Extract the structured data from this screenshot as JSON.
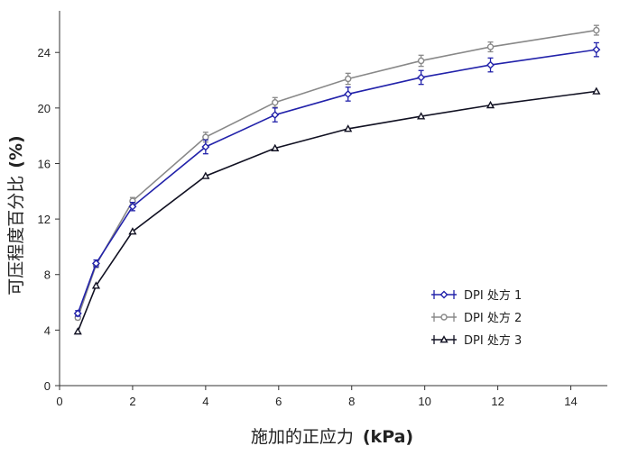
{
  "chart_data": {
    "type": "line",
    "xlabel": {
      "text": "施加的正应力",
      "unit": "(kPa)"
    },
    "ylabel": {
      "text": "可压程度百分比",
      "unit": "(%)"
    },
    "xlim": [
      0,
      15
    ],
    "ylim": [
      0,
      27
    ],
    "x_ticks": [
      0,
      2,
      4,
      6,
      8,
      10,
      12,
      14
    ],
    "y_ticks": [
      0,
      4,
      8,
      12,
      16,
      20,
      24
    ],
    "grid": false,
    "legend_position": "lower-right",
    "series": [
      {
        "name": "DPI 处方 1",
        "color": "#2222aa",
        "marker": "diamond",
        "x": [
          0.5,
          1.0,
          2.0,
          4.0,
          5.9,
          7.9,
          9.9,
          11.8,
          14.7
        ],
        "y": [
          5.2,
          8.8,
          12.9,
          17.2,
          19.5,
          21.0,
          22.2,
          23.1,
          24.2
        ],
        "err": [
          0.2,
          0.25,
          0.3,
          0.5,
          0.5,
          0.5,
          0.5,
          0.5,
          0.5
        ]
      },
      {
        "name": "DPI 处方 2",
        "color": "#888888",
        "marker": "circle",
        "x": [
          0.5,
          1.0,
          2.0,
          4.0,
          5.9,
          7.9,
          9.9,
          11.8,
          14.7
        ],
        "y": [
          4.9,
          8.7,
          13.3,
          17.9,
          20.4,
          22.1,
          23.4,
          24.4,
          25.6
        ],
        "err": [
          0.15,
          0.2,
          0.25,
          0.35,
          0.35,
          0.4,
          0.4,
          0.35,
          0.35
        ]
      },
      {
        "name": "DPI 处方 3",
        "color": "#111122",
        "marker": "triangle",
        "x": [
          0.5,
          1.0,
          2.0,
          4.0,
          5.9,
          7.9,
          9.9,
          11.8,
          14.7
        ],
        "y": [
          3.9,
          7.2,
          11.1,
          15.1,
          17.1,
          18.5,
          19.4,
          20.2,
          21.2
        ],
        "err": [
          0.1,
          0.1,
          0.1,
          0.1,
          0.1,
          0.1,
          0.1,
          0.1,
          0.1
        ]
      }
    ]
  }
}
